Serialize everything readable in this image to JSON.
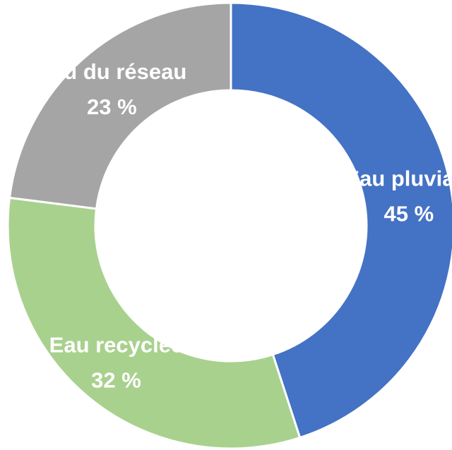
{
  "chart_data": {
    "type": "donut",
    "categories": [
      "Eau pluviale",
      "Eau recyclée",
      "Eau du réseau"
    ],
    "values": [
      45,
      32,
      23
    ],
    "value_labels": [
      "45 %",
      "32 %",
      "23 %"
    ],
    "colors": [
      "#4472c4",
      "#a9d18e",
      "#a5a5a5"
    ]
  }
}
